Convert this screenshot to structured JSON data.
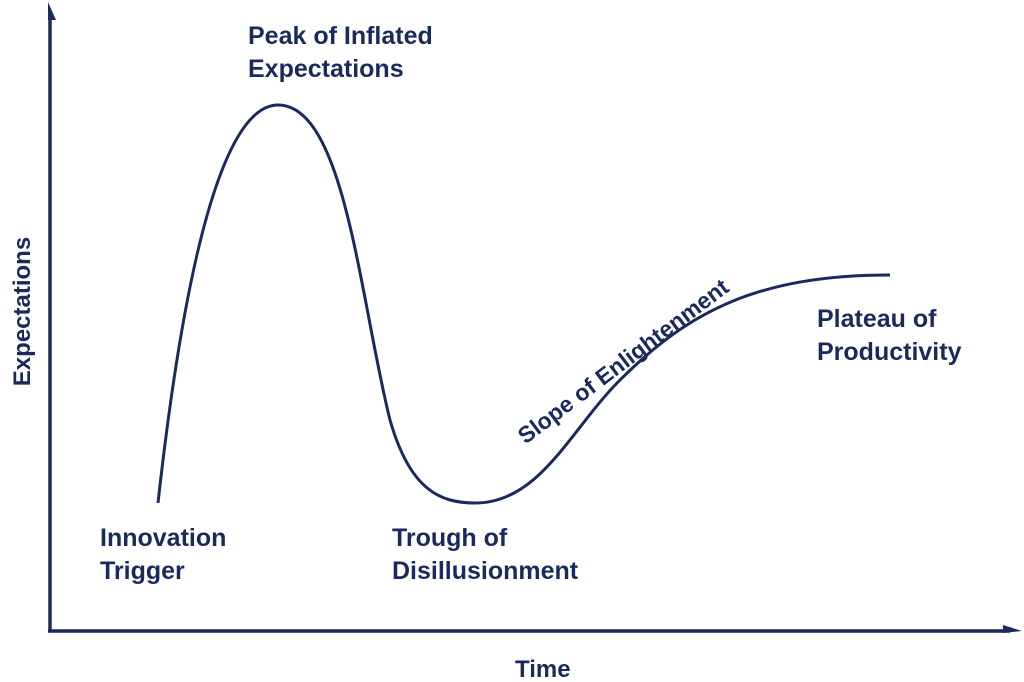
{
  "diagram": {
    "color": "#1b2a5c",
    "x_axis_label": "Time",
    "y_axis_label": "Expectations",
    "phases": {
      "innovation_trigger": [
        "Innovation",
        "Trigger"
      ],
      "peak": [
        "Peak of Inflated",
        "Expectations"
      ],
      "trough": [
        "Trough of",
        "Disillusionment"
      ],
      "slope": "Slope of Enlightenment",
      "plateau": [
        "Plateau of",
        "Productivity"
      ]
    }
  }
}
